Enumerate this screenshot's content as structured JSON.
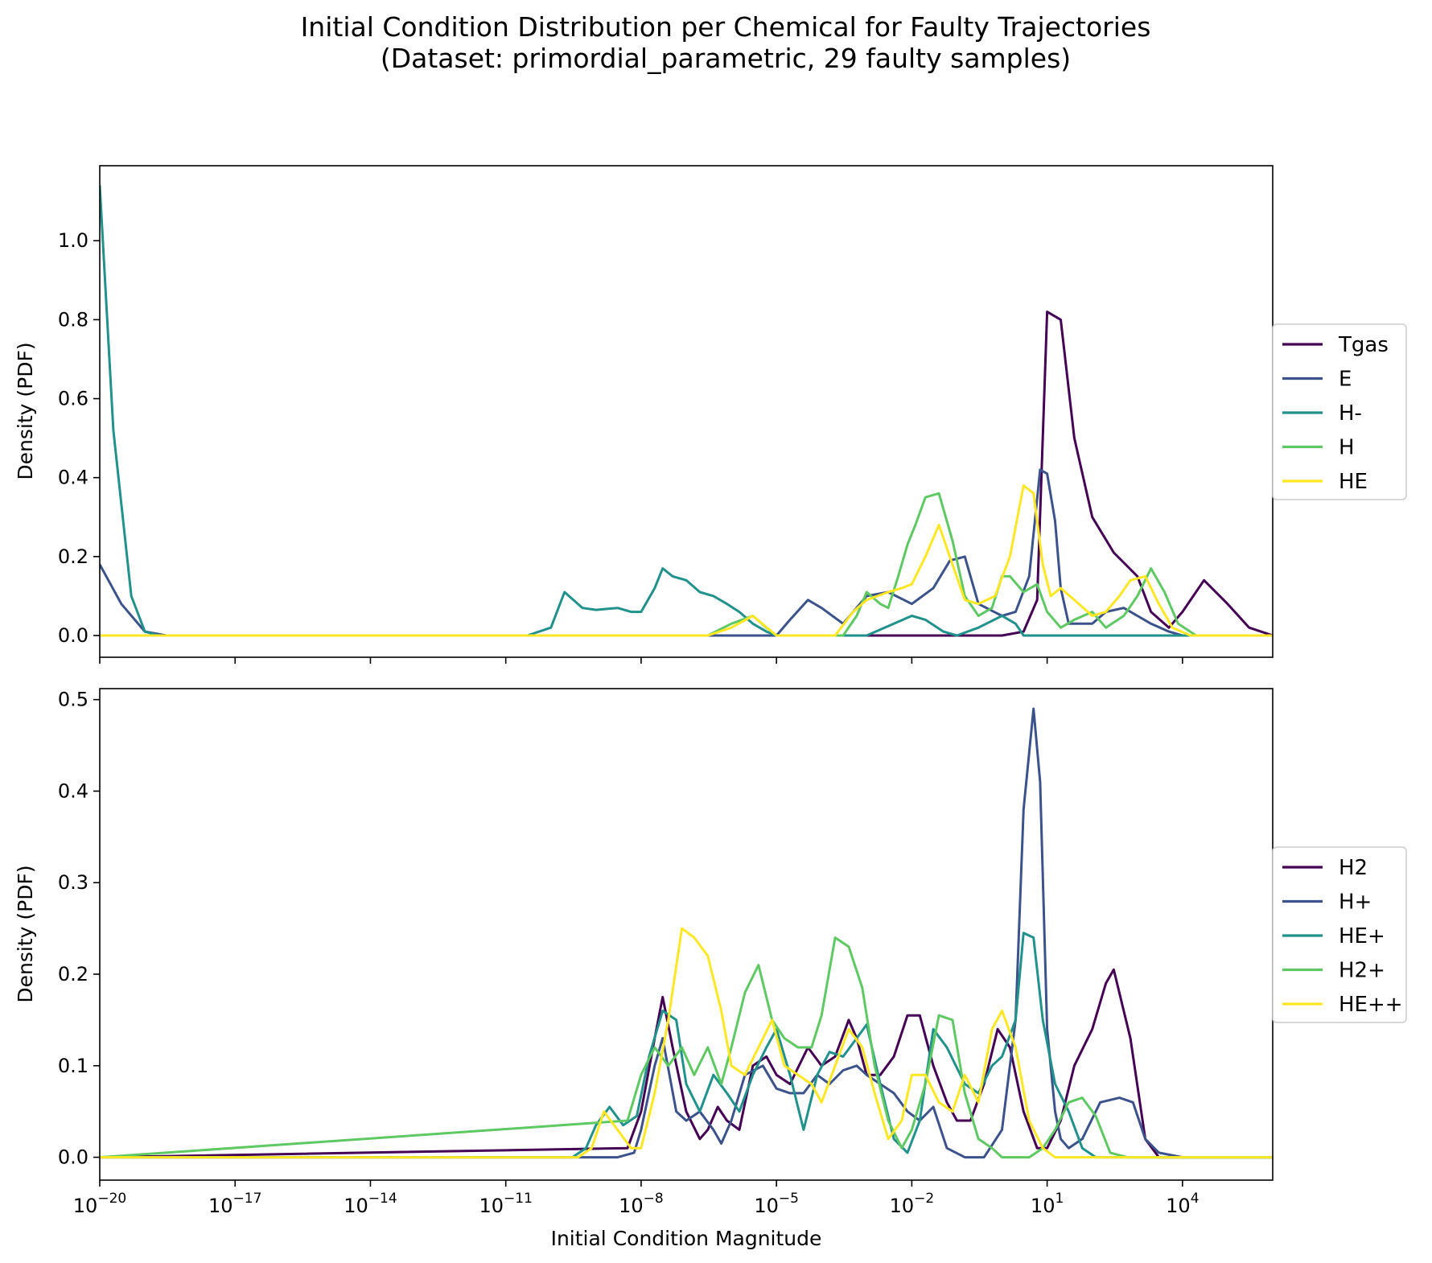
{
  "figure": {
    "title_line1": "Initial Condition Distribution per Chemical for Faulty Trajectories",
    "title_line2": "(Dataset: primordial_parametric, 29 faulty samples)"
  },
  "chart_data": [
    {
      "type": "line",
      "ylabel": "Density (PDF)",
      "xlabel": "",
      "xscale": "log",
      "xlim": [
        1e-20,
        1000000.0
      ],
      "ylim": [
        -0.055,
        1.19
      ],
      "yticks": [
        0.0,
        0.2,
        0.4,
        0.6,
        0.8,
        1.0
      ],
      "ytick_labels": [
        "0.0",
        "0.2",
        "0.4",
        "0.6",
        "0.8",
        "1.0"
      ],
      "xticks": [
        1e-20,
        1e-17,
        1e-14,
        1e-11,
        1e-08,
        1e-05,
        0.01,
        10.0,
        10000.0
      ],
      "xtick_labels_shown": false,
      "grid": false,
      "legend_position": "outside right",
      "series": [
        {
          "name": "Tgas",
          "color": "#440154",
          "x": [
            1e-20,
            1e-06,
            1,
            3,
            6,
            10,
            20,
            40,
            100,
            300,
            1000,
            2000,
            5000,
            10000,
            30000,
            100000,
            300000,
            1000000
          ],
          "y": [
            0,
            0,
            0.0,
            0.01,
            0.09,
            0.82,
            0.8,
            0.5,
            0.3,
            0.21,
            0.15,
            0.06,
            0.02,
            0.06,
            0.14,
            0.08,
            0.02,
            0
          ]
        },
        {
          "name": "E",
          "color": "#3b528b",
          "x": [
            1e-20,
            3e-20,
            1e-19,
            3e-19,
            1e-18,
            1e-05,
            2e-05,
            5e-05,
            0.0001,
            0.0003,
            0.001,
            0.003,
            0.01,
            0.03,
            0.07,
            0.15,
            0.3,
            1,
            2,
            4,
            7,
            10,
            15,
            20,
            30,
            50,
            100,
            200,
            500,
            1000,
            2000,
            5000,
            10000,
            1000000
          ],
          "y": [
            0.18,
            0.08,
            0.01,
            0,
            0,
            0,
            0.04,
            0.09,
            0.07,
            0.03,
            0.1,
            0.11,
            0.08,
            0.12,
            0.19,
            0.2,
            0.08,
            0.05,
            0.06,
            0.15,
            0.42,
            0.41,
            0.29,
            0.12,
            0.03,
            0.03,
            0.03,
            0.06,
            0.07,
            0.05,
            0.03,
            0.01,
            0,
            0
          ]
        },
        {
          "name": "H-",
          "color": "#21918c",
          "x": [
            1e-20,
            2e-20,
            5e-20,
            1e-19,
            2e-19,
            1e-18,
            3e-11,
            1e-10,
            2e-10,
            5e-10,
            1e-09,
            3e-09,
            6e-09,
            1e-08,
            2e-08,
            3e-08,
            5e-08,
            1e-07,
            2e-07,
            4e-07,
            8e-07,
            1.5e-06,
            3e-06,
            6e-06,
            1e-05,
            0.001,
            0.01,
            0.02,
            0.05,
            0.1,
            0.3,
            1,
            2,
            3,
            10,
            1000000
          ],
          "y": [
            1.14,
            0.52,
            0.1,
            0.01,
            0,
            0,
            0,
            0.02,
            0.11,
            0.07,
            0.065,
            0.07,
            0.06,
            0.06,
            0.12,
            0.17,
            0.15,
            0.14,
            0.11,
            0.1,
            0.08,
            0.06,
            0.03,
            0.01,
            0,
            0,
            0.05,
            0.04,
            0.01,
            0,
            0.02,
            0.05,
            0.03,
            0,
            0,
            0
          ]
        },
        {
          "name": "H",
          "color": "#5ec962",
          "x": [
            1e-20,
            3e-07,
            1e-06,
            3e-06,
            6e-06,
            1e-05,
            0.0003,
            0.0006,
            0.001,
            0.002,
            0.003,
            0.005,
            0.008,
            0.012,
            0.02,
            0.04,
            0.08,
            0.15,
            0.3,
            0.6,
            1,
            1.5,
            3,
            6,
            10,
            20,
            40,
            100,
            200,
            500,
            1000,
            2000,
            4000,
            8000,
            20000,
            100000,
            1000000
          ],
          "y": [
            0,
            0,
            0.03,
            0.05,
            0.02,
            0,
            0,
            0.05,
            0.11,
            0.08,
            0.07,
            0.15,
            0.23,
            0.28,
            0.35,
            0.36,
            0.24,
            0.1,
            0.05,
            0.07,
            0.15,
            0.15,
            0.11,
            0.13,
            0.06,
            0.02,
            0.04,
            0.06,
            0.02,
            0.05,
            0.1,
            0.17,
            0.11,
            0.03,
            0,
            0,
            0
          ]
        },
        {
          "name": "HE",
          "color": "#fde725",
          "x": [
            1e-20,
            3e-07,
            1e-06,
            3e-06,
            1e-05,
            0.0002,
            0.0005,
            0.001,
            0.003,
            0.006,
            0.01,
            0.02,
            0.04,
            0.08,
            0.15,
            0.3,
            0.7,
            1.5,
            3,
            5,
            8,
            12,
            20,
            40,
            100,
            200,
            400,
            700,
            1500,
            3000,
            6000,
            15000,
            1000000
          ],
          "y": [
            0,
            0,
            0.02,
            0.05,
            0,
            0,
            0.06,
            0.09,
            0.11,
            0.12,
            0.13,
            0.2,
            0.28,
            0.18,
            0.09,
            0.08,
            0.1,
            0.2,
            0.38,
            0.36,
            0.18,
            0.1,
            0.12,
            0.09,
            0.05,
            0.06,
            0.1,
            0.14,
            0.15,
            0.08,
            0.02,
            0,
            0
          ]
        }
      ]
    },
    {
      "type": "line",
      "ylabel": "Density (PDF)",
      "xlabel": "Initial Condition Magnitude",
      "xscale": "log",
      "xlim": [
        1e-20,
        1000000.0
      ],
      "ylim": [
        -0.025,
        0.512
      ],
      "yticks": [
        0.0,
        0.1,
        0.2,
        0.3,
        0.4,
        0.5
      ],
      "ytick_labels": [
        "0.0",
        "0.1",
        "0.2",
        "0.3",
        "0.4",
        "0.5"
      ],
      "xticks": [
        1e-20,
        1e-17,
        1e-14,
        1e-11,
        1e-08,
        1e-05,
        0.01,
        10.0,
        10000.0
      ],
      "xtick_labels": [
        {
          "base": "10",
          "exp": "−20"
        },
        {
          "base": "10",
          "exp": "−17"
        },
        {
          "base": "10",
          "exp": "−14"
        },
        {
          "base": "10",
          "exp": "−11"
        },
        {
          "base": "10",
          "exp": "−8"
        },
        {
          "base": "10",
          "exp": "−5"
        },
        {
          "base": "10",
          "exp": "−2"
        },
        {
          "base": "10",
          "exp": "1"
        },
        {
          "base": "10",
          "exp": "4"
        }
      ],
      "grid": false,
      "legend_position": "outside right",
      "series": [
        {
          "name": "H2",
          "color": "#440154",
          "x": [
            1e-20,
            5e-09,
            1e-08,
            2e-08,
            3e-08,
            5e-08,
            1e-07,
            2e-07,
            3e-07,
            5e-07,
            8e-07,
            1.5e-06,
            3e-06,
            6e-06,
            1e-05,
            2e-05,
            5e-05,
            0.0001,
            0.0002,
            0.0004,
            0.0006,
            0.001,
            0.002,
            0.004,
            0.008,
            0.015,
            0.03,
            0.06,
            0.1,
            0.2,
            0.4,
            0.8,
            1.5,
            3,
            6,
            10,
            20,
            40,
            100,
            200,
            300,
            700,
            1500,
            3000,
            1000000
          ],
          "y": [
            0,
            0.01,
            0.05,
            0.13,
            0.175,
            0.12,
            0.05,
            0.02,
            0.03,
            0.055,
            0.04,
            0.03,
            0.1,
            0.11,
            0.09,
            0.08,
            0.12,
            0.1,
            0.11,
            0.15,
            0.13,
            0.09,
            0.09,
            0.11,
            0.155,
            0.155,
            0.1,
            0.06,
            0.04,
            0.04,
            0.08,
            0.14,
            0.12,
            0.05,
            0.01,
            0.01,
            0.04,
            0.1,
            0.14,
            0.19,
            0.205,
            0.13,
            0.02,
            0,
            0
          ]
        },
        {
          "name": "H+",
          "color": "#3b528b",
          "x": [
            1e-20,
            1e-09,
            3e-09,
            7e-09,
            1e-08,
            2e-08,
            3e-08,
            6e-08,
            1e-07,
            2e-07,
            4e-07,
            6e-07,
            1e-06,
            2e-06,
            5e-06,
            1e-05,
            2e-05,
            4e-05,
            8e-05,
            0.00015,
            0.0003,
            0.0006,
            0.001,
            0.002,
            0.004,
            0.008,
            0.015,
            0.03,
            0.06,
            0.15,
            0.4,
            1,
            2,
            3,
            5,
            7,
            10,
            15,
            20,
            30,
            60,
            150,
            400,
            800,
            1500,
            3000,
            10000,
            1000000
          ],
          "y": [
            0,
            0,
            0,
            0.005,
            0.03,
            0.1,
            0.13,
            0.05,
            0.04,
            0.05,
            0.03,
            0.015,
            0.04,
            0.09,
            0.1,
            0.075,
            0.07,
            0.07,
            0.09,
            0.08,
            0.095,
            0.1,
            0.09,
            0.08,
            0.07,
            0.05,
            0.04,
            0.055,
            0.01,
            0,
            0,
            0.03,
            0.15,
            0.38,
            0.49,
            0.41,
            0.14,
            0.05,
            0.02,
            0.01,
            0.02,
            0.06,
            0.065,
            0.06,
            0.02,
            0.005,
            0,
            0
          ]
        },
        {
          "name": "HE+",
          "color": "#21918c",
          "x": [
            1e-20,
            3e-10,
            6e-10,
            1e-09,
            2e-09,
            4e-09,
            8e-09,
            1.5e-08,
            3e-08,
            6e-08,
            1e-07,
            2e-07,
            4e-07,
            8e-07,
            1.5e-06,
            3e-06,
            6e-06,
            1e-05,
            2e-05,
            4e-05,
            8e-05,
            0.00015,
            0.0003,
            0.0006,
            0.001,
            0.002,
            0.004,
            0.008,
            0.015,
            0.03,
            0.06,
            0.15,
            0.3,
            0.6,
            1,
            2,
            3,
            5,
            8,
            15,
            30,
            60,
            120,
            1000000
          ],
          "y": [
            0,
            0,
            0.01,
            0.035,
            0.055,
            0.035,
            0.045,
            0.11,
            0.16,
            0.15,
            0.08,
            0.05,
            0.09,
            0.07,
            0.05,
            0.09,
            0.12,
            0.14,
            0.09,
            0.03,
            0.09,
            0.115,
            0.11,
            0.13,
            0.145,
            0.08,
            0.02,
            0.005,
            0.04,
            0.14,
            0.12,
            0.08,
            0.07,
            0.1,
            0.11,
            0.15,
            0.245,
            0.24,
            0.15,
            0.08,
            0.05,
            0.01,
            0,
            0
          ]
        },
        {
          "name": "H2+",
          "color": "#5ec962",
          "x": [
            1e-20,
            5e-09,
            1e-08,
            2e-08,
            4e-08,
            8e-08,
            1.5e-07,
            3e-07,
            6e-07,
            1e-06,
            2e-06,
            4e-06,
            8e-06,
            1.5e-05,
            3e-05,
            6e-05,
            0.0001,
            0.0002,
            0.0004,
            0.0008,
            0.0015,
            0.003,
            0.006,
            0.01,
            0.02,
            0.04,
            0.08,
            0.15,
            0.3,
            0.6,
            1,
            2,
            4,
            8,
            15,
            30,
            60,
            120,
            250,
            600,
            1000000
          ],
          "y": [
            0,
            0.04,
            0.09,
            0.12,
            0.1,
            0.12,
            0.09,
            0.12,
            0.08,
            0.12,
            0.18,
            0.21,
            0.15,
            0.13,
            0.12,
            0.12,
            0.155,
            0.24,
            0.23,
            0.185,
            0.1,
            0.04,
            0.01,
            0.03,
            0.08,
            0.155,
            0.15,
            0.07,
            0.02,
            0.01,
            0,
            0,
            0,
            0.01,
            0.03,
            0.06,
            0.065,
            0.045,
            0.005,
            0,
            0
          ]
        },
        {
          "name": "HE++",
          "color": "#fde725",
          "x": [
            1e-20,
            4e-10,
            8e-10,
            1.5e-09,
            3e-09,
            6e-09,
            1e-08,
            2e-08,
            4e-08,
            8e-08,
            1.5e-07,
            3e-07,
            6e-07,
            1e-06,
            2e-06,
            4e-06,
            8e-06,
            1.5e-05,
            3e-05,
            6e-05,
            0.0001,
            0.0002,
            0.0004,
            0.0008,
            0.0015,
            0.003,
            0.006,
            0.01,
            0.02,
            0.04,
            0.08,
            0.15,
            0.3,
            0.6,
            1,
            2,
            4,
            8,
            15,
            30,
            1000000
          ],
          "y": [
            0,
            0,
            0.01,
            0.05,
            0.03,
            0.01,
            0.01,
            0.07,
            0.15,
            0.25,
            0.24,
            0.22,
            0.16,
            0.1,
            0.09,
            0.12,
            0.15,
            0.1,
            0.09,
            0.08,
            0.06,
            0.1,
            0.14,
            0.12,
            0.07,
            0.02,
            0.04,
            0.09,
            0.09,
            0.06,
            0.05,
            0.09,
            0.06,
            0.14,
            0.16,
            0.12,
            0.04,
            0.01,
            0,
            0,
            0
          ]
        }
      ]
    }
  ]
}
